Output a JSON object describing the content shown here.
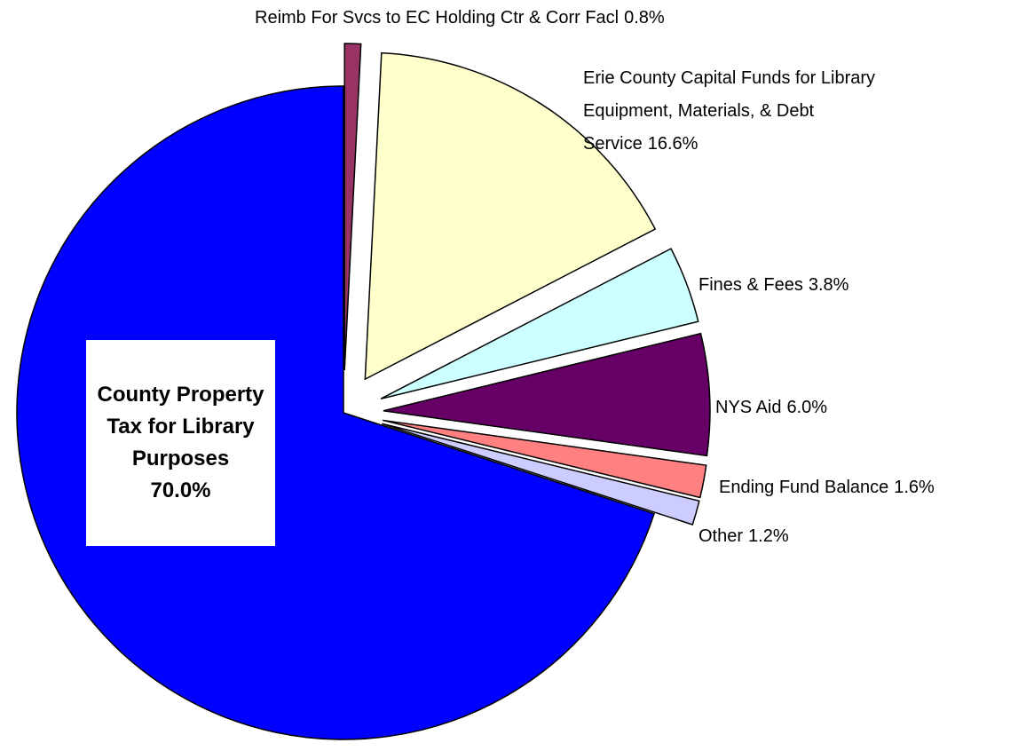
{
  "chart_data": {
    "type": "pie",
    "categories": [
      "Reimb For Svcs to EC Holding Ctr & Corr Facl",
      "Erie County Capital Funds for Library Equipment, Materials, & Debt Service",
      "Fines & Fees",
      "NYS Aid",
      "Ending Fund Balance",
      "Other",
      "County Property Tax for Library Purposes"
    ],
    "values": [
      0.8,
      16.6,
      3.8,
      6.0,
      1.6,
      1.2,
      70.0
    ],
    "value_labels": [
      "0.8%",
      "16.6%",
      "3.8%",
      "6.0%",
      "1.6%",
      "1.2%",
      "70.0%"
    ],
    "colors": [
      "#993366",
      "#ffffcc",
      "#ccffff",
      "#660066",
      "#ff8080",
      "#ccccff",
      "#0000ff"
    ]
  }
}
